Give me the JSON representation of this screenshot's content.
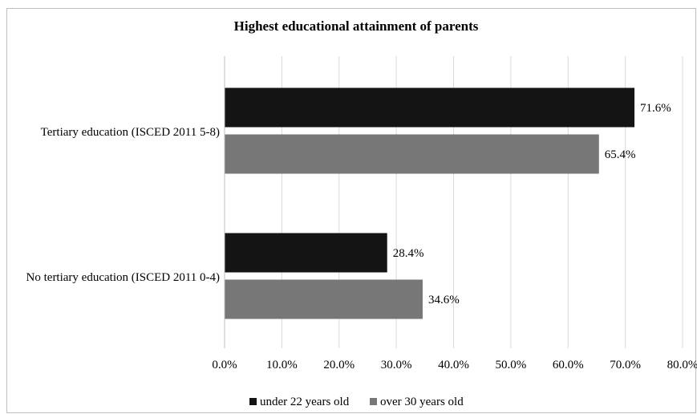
{
  "chart_data": {
    "type": "bar",
    "orientation": "horizontal",
    "title": "Highest educational attainment of parents",
    "categories": [
      "Tertiary education (ISCED 2011 5-8)",
      "No tertiary education (ISCED 2011 0-4)"
    ],
    "series": [
      {
        "name": "under 22 years old",
        "values": [
          71.6,
          28.4
        ],
        "color": "#141414",
        "labels": [
          "71.6%",
          "28.4%"
        ]
      },
      {
        "name": "over 30 years old",
        "values": [
          65.4,
          34.6
        ],
        "color": "#777777",
        "labels": [
          "65.4%",
          "34.6%"
        ]
      }
    ],
    "xlim": [
      0,
      80
    ],
    "xticks": [
      0,
      10,
      20,
      30,
      40,
      50,
      60,
      70,
      80
    ],
    "xtick_labels": [
      "0.0%",
      "10.0%",
      "20.0%",
      "30.0%",
      "40.0%",
      "50.0%",
      "60.0%",
      "70.0%",
      "80.0%"
    ],
    "grid": "vertical",
    "legend_position": "bottom"
  }
}
